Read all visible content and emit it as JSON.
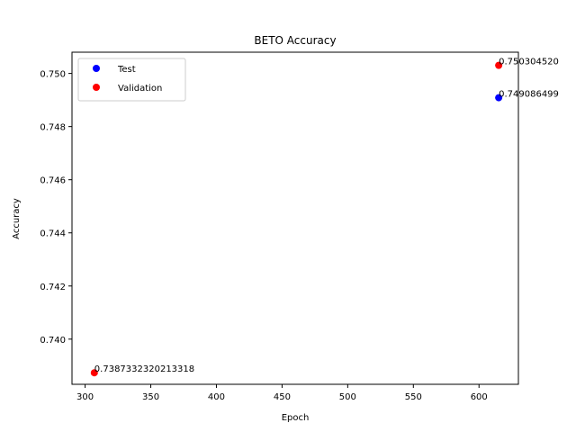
{
  "chart_data": {
    "type": "scatter",
    "title": "BETO Accuracy",
    "xlabel": "Epoch",
    "ylabel": "Accuracy",
    "xlim": [
      290,
      630
    ],
    "ylim": [
      0.7383,
      0.7508
    ],
    "x_ticks": [
      300,
      350,
      400,
      450,
      500,
      550,
      600
    ],
    "y_ticks": [
      0.74,
      0.742,
      0.744,
      0.746,
      0.748,
      0.75
    ],
    "grid": false,
    "legend_position": "upper-left",
    "series": [
      {
        "name": "Test",
        "color": "#0000ff",
        "points": [
          {
            "x": 615,
            "y": 0.749086499,
            "label": "0.749086499"
          }
        ]
      },
      {
        "name": "Validation",
        "color": "#ff0000",
        "points": [
          {
            "x": 307,
            "y": 0.7387332320213318,
            "label": "0.7387332320213318"
          },
          {
            "x": 615,
            "y": 0.75030452,
            "label": "0.750304520"
          }
        ]
      }
    ]
  }
}
